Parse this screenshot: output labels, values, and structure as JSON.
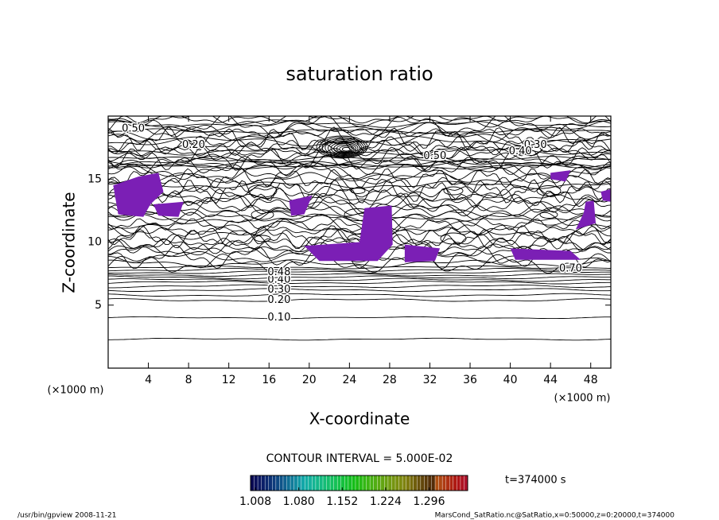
{
  "chart_data": {
    "type": "contour",
    "title": "saturation ratio",
    "x_label": "X-coordinate",
    "y_label": "Z-coordinate",
    "x_unit": "(×1000 m)",
    "y_unit": "(×1000 m)",
    "xlim": [
      0,
      50
    ],
    "xticks": [
      4,
      8,
      12,
      16,
      20,
      24,
      28,
      32,
      36,
      40,
      44,
      48
    ],
    "ylim": [
      0,
      20
    ],
    "yticks": [
      5,
      10,
      15
    ],
    "contour_interval": "CONTOUR INTERVAL = 5.000E-02",
    "contour_labels": [
      "0.10",
      "0.20",
      "0.30",
      "0.40",
      "0.48",
      "0.50",
      "0.20",
      "0.30",
      "0.40",
      "0.50",
      "0.70"
    ],
    "fill_color": "#7b1fb5",
    "colorbar": {
      "lim": [
        1.0,
        1.36
      ],
      "ticks": [
        1.008,
        {
          "value": 1.08,
          "label": "1.080"
        },
        1.152,
        1.224,
        1.296
      ]
    },
    "time_label": "t=374000 s",
    "footer_left": "/usr/bin/gpview  2008-11-21",
    "footer_right": "MarsCond_SatRatio.nc@SatRatio,x=0:50000,z=0:20000,t=374000"
  }
}
